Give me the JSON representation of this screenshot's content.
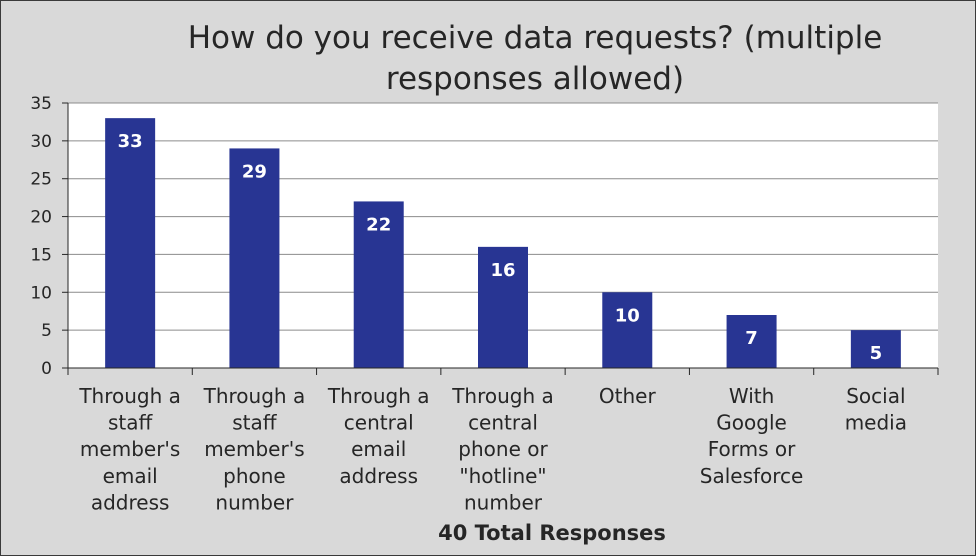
{
  "chart_data": {
    "type": "bar",
    "title": "How do you receive data requests?  (multiple responses allowed)",
    "xlabel": "40 Total Responses",
    "ylabel": "",
    "categories": [
      "Through a staff member's email address",
      "Through a staff member's phone number",
      "Through a central email address",
      "Through a central phone or \"hotline\" number",
      "Other",
      "With Google Forms or Salesforce",
      "Social media"
    ],
    "category_lines": [
      [
        "Through a",
        "staff",
        "member's",
        "email",
        "address"
      ],
      [
        "Through a",
        "staff",
        "member's",
        "phone",
        "number"
      ],
      [
        "Through a",
        "central",
        "email",
        "address"
      ],
      [
        "Through a",
        "central",
        "phone or",
        "\"hotline\"",
        "number"
      ],
      [
        "Other"
      ],
      [
        "With",
        "Google",
        "Forms or",
        "Salesforce"
      ],
      [
        "Social",
        "media"
      ]
    ],
    "values": [
      33,
      29,
      22,
      16,
      10,
      7,
      5
    ],
    "ylim": [
      0,
      35
    ],
    "yticks": [
      0,
      5,
      10,
      15,
      20,
      25,
      30,
      35
    ],
    "grid": true,
    "legend": "none",
    "colors": {
      "bar": "#283593",
      "plot_background": "#ffffff",
      "chart_background": "#d9d9d9",
      "grid": "#8c8c8c",
      "data_label": "#ffffff"
    }
  }
}
